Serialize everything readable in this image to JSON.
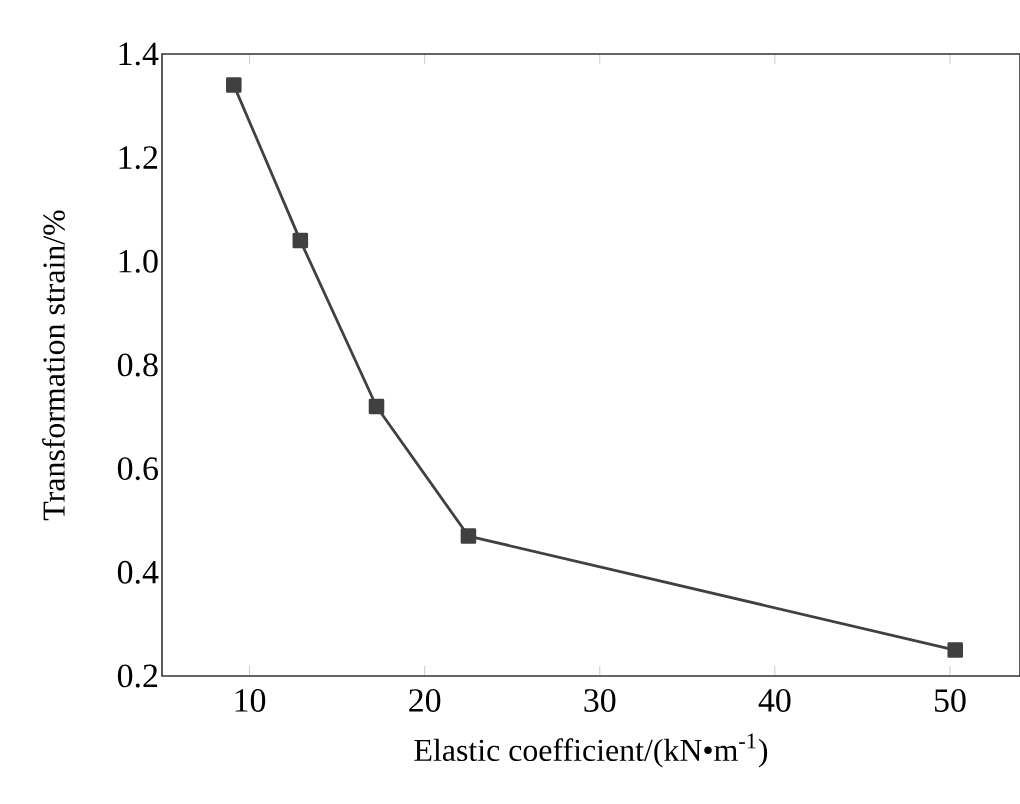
{
  "chart_data": {
    "type": "line",
    "xlabel": "Elastic coefficient/(kN•m$^{-1}$)",
    "ylabel": "Transformation strain/%",
    "x": [
      9.1,
      12.9,
      17.25,
      22.5,
      50.3
    ],
    "series": [
      {
        "color": "#404040",
        "values": [
          1.34,
          1.04,
          0.72,
          0.47,
          0.25
        ]
      }
    ],
    "xlim": [
      5,
      54
    ],
    "ylim": [
      0.2,
      1.4
    ],
    "xticks": [
      10,
      20,
      30,
      40,
      50
    ],
    "yticks": [
      0.2,
      0.4,
      0.6,
      0.8,
      {
        "value": 1.0,
        "label": "1.0"
      },
      1.2,
      1.4
    ],
    "marker": "square",
    "line_style": "solid"
  }
}
